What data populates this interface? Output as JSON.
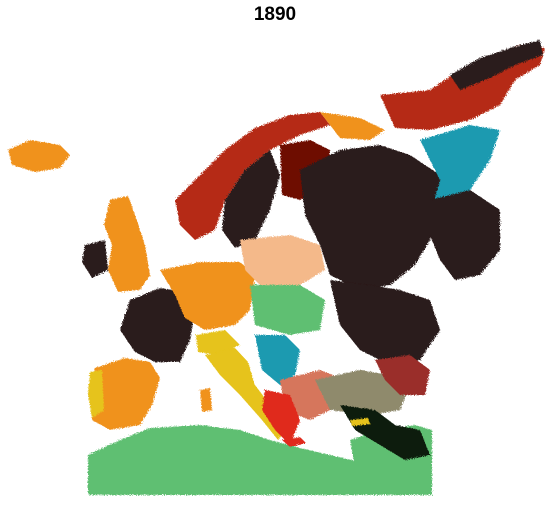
{
  "figure": {
    "title": "1890"
  },
  "palette": {
    "background": "#ffffff",
    "title_color": "#000000",
    "dark_brown": "#2a1a1a",
    "orange": "#f0921e",
    "rust_red": "#b52c12",
    "maroon": "#6e0a06",
    "teal_blue": "#1a9ab0",
    "green": "#5fbf72",
    "yellow": "#e6c31a",
    "peach": "#f4b98a",
    "brown_red": "#9a2f2a",
    "salmon": "#d6765c",
    "olive_taupe": "#8f8a6c",
    "black_green": "#0a1a0a",
    "red": "#e02a1e"
  }
}
